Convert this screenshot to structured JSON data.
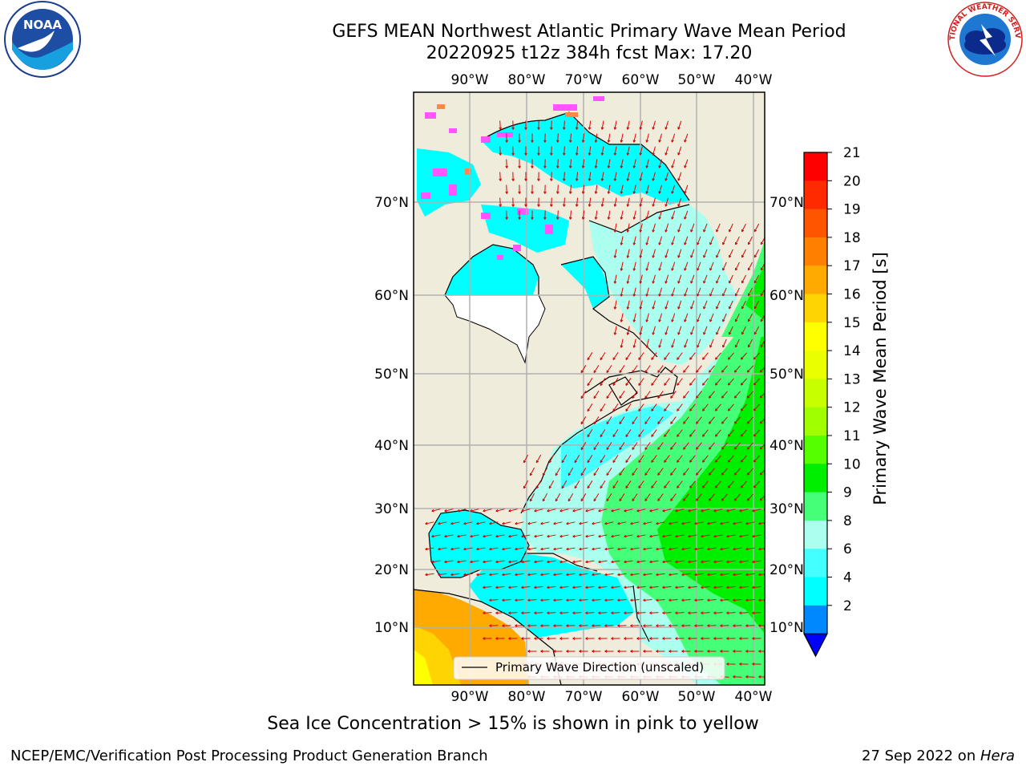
{
  "header": {
    "title_line1": "GEFS MEAN Northwest Atlantic Primary Wave Mean Period",
    "title_line2": "20220925 t12z 384h fcst   Max: 17.20"
  },
  "map": {
    "lon_ticks": [
      "90°W",
      "80°W",
      "70°W",
      "60°W",
      "50°W",
      "40°W"
    ],
    "lat_ticks": [
      "70°N",
      "60°N",
      "50°N",
      "40°N",
      "30°N",
      "20°N",
      "10°N"
    ],
    "legend_label": "Primary Wave Direction (unscaled)",
    "vector_color": "#e00000"
  },
  "colorbar": {
    "label": "Primary Wave Mean Period [s]",
    "tick_labels": [
      "21",
      "20",
      "19",
      "18",
      "17",
      "16",
      "15",
      "14",
      "13",
      "12",
      "11",
      "10",
      "9",
      "8",
      "6",
      "4",
      "2"
    ],
    "colors_top_to_bottom": [
      "#ff0000",
      "#ff2a00",
      "#ff5500",
      "#ff7f00",
      "#ffaa00",
      "#ffd400",
      "#ffff00",
      "#eaff00",
      "#c8ff00",
      "#a0ff00",
      "#55ff00",
      "#00ee00",
      "#44ff77",
      "#aaffee",
      "#44ffff",
      "#00ffff",
      "#0088ff"
    ],
    "under_color": "#0000ff"
  },
  "caption": "Sea Ice Concentration > 15% is shown in pink to yellow",
  "footer": {
    "left": "NCEP/EMC/Verification Post Processing Product Generation Branch",
    "right_prefix": "27 Sep 2022 on ",
    "right_host": "Hera"
  },
  "logos": {
    "noaa_text": "NOAA",
    "nws_text": "NATIONAL WEATHER SERVICE"
  }
}
